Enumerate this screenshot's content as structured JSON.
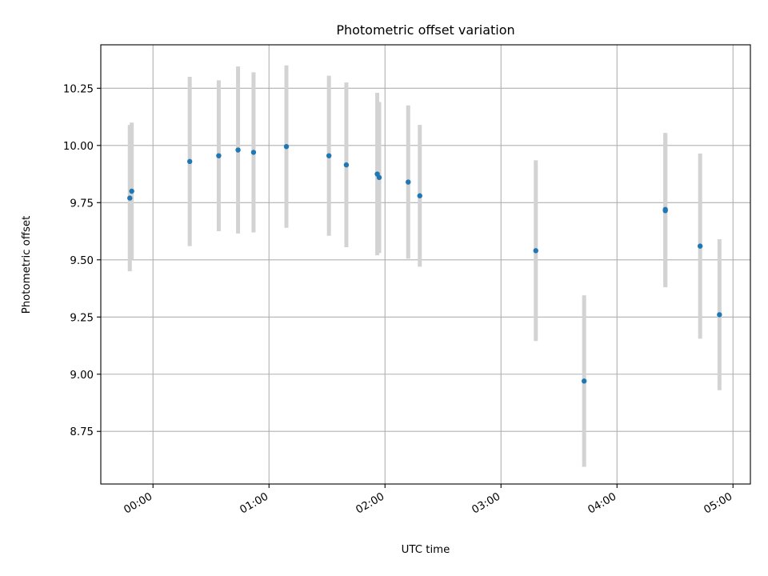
{
  "chart_data": {
    "type": "scatter",
    "title": "Photometric offset variation",
    "xlabel": "UTC time",
    "ylabel": "Photometric offset",
    "x_unit": "UTC time (HH:MM)",
    "xlim": [
      "-00:27",
      "05:09"
    ],
    "ylim": [
      8.52,
      10.44
    ],
    "x_ticks": [
      "00:00",
      "01:00",
      "02:00",
      "03:00",
      "04:00",
      "05:00"
    ],
    "y_ticks": [
      "8.75",
      "9.00",
      "9.25",
      "9.50",
      "9.75",
      "10.00",
      "10.25"
    ],
    "grid": true,
    "legend": "none",
    "marker_color": "#1f77b4",
    "errorbar_color": "#d3d3d3",
    "points": [
      {
        "x": "-00:12",
        "y": 9.77,
        "err": 0.32
      },
      {
        "x": "-00:11",
        "y": 9.8,
        "err": 0.3
      },
      {
        "x": "00:19",
        "y": 9.93,
        "err": 0.37
      },
      {
        "x": "00:34",
        "y": 9.955,
        "err": 0.33
      },
      {
        "x": "00:44",
        "y": 9.98,
        "err": 0.365
      },
      {
        "x": "00:52",
        "y": 9.97,
        "err": 0.35
      },
      {
        "x": "01:09",
        "y": 9.995,
        "err": 0.355
      },
      {
        "x": "01:31",
        "y": 9.955,
        "err": 0.35
      },
      {
        "x": "01:40",
        "y": 9.915,
        "err": 0.36
      },
      {
        "x": "01:56",
        "y": 9.875,
        "err": 0.355
      },
      {
        "x": "01:57",
        "y": 9.86,
        "err": 0.33
      },
      {
        "x": "02:12",
        "y": 9.84,
        "err": 0.335
      },
      {
        "x": "02:18",
        "y": 9.78,
        "err": 0.31
      },
      {
        "x": "03:18",
        "y": 9.54,
        "err": 0.395
      },
      {
        "x": "03:43",
        "y": 8.97,
        "err": 0.375
      },
      {
        "x": "04:25",
        "y": 9.715,
        "err": 0.335
      },
      {
        "x": "04:25",
        "y": 9.72,
        "err": 0.335
      },
      {
        "x": "04:43",
        "y": 9.56,
        "err": 0.405
      },
      {
        "x": "04:53",
        "y": 9.26,
        "err": 0.33
      }
    ]
  }
}
